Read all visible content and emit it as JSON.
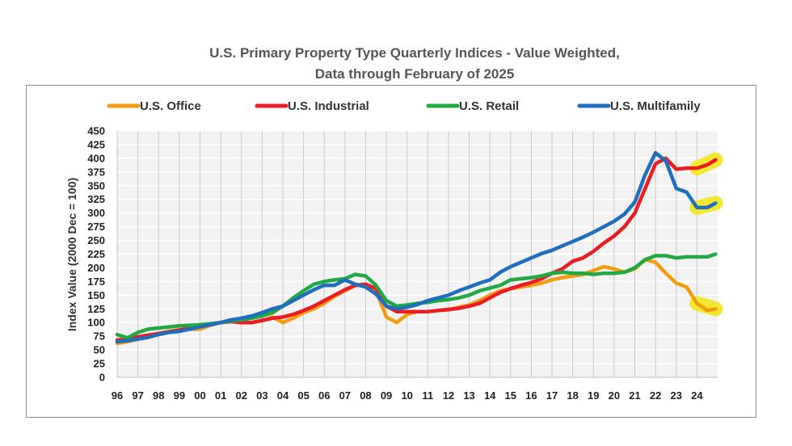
{
  "chart_data": {
    "type": "line",
    "title_line1": "U.S. Primary Property Type  Quarterly Indices - Value Weighted,",
    "title_line2": "Data through February of 2025",
    "ylabel": "Index Value (2000 Dec = 100)",
    "xlabel": "",
    "ylim": [
      0,
      450
    ],
    "ytick_step": 25,
    "grid": true,
    "legend_position": "top",
    "x_tick_labels": [
      "96",
      "97",
      "98",
      "99",
      "00",
      "01",
      "02",
      "03",
      "04",
      "05",
      "06",
      "07",
      "08",
      "09",
      "10",
      "11",
      "12",
      "13",
      "14",
      "15",
      "16",
      "17",
      "18",
      "19",
      "20",
      "21",
      "22",
      "23",
      "24"
    ],
    "x": [
      1996.0,
      1996.5,
      1997.0,
      1997.5,
      1998.0,
      1998.5,
      1999.0,
      1999.5,
      2000.0,
      2000.5,
      2001.0,
      2001.5,
      2002.0,
      2002.5,
      2003.0,
      2003.5,
      2004.0,
      2004.5,
      2005.0,
      2005.5,
      2006.0,
      2006.5,
      2007.0,
      2007.5,
      2008.0,
      2008.5,
      2009.0,
      2009.5,
      2010.0,
      2010.5,
      2011.0,
      2011.5,
      2012.0,
      2012.5,
      2013.0,
      2013.5,
      2014.0,
      2014.5,
      2015.0,
      2015.5,
      2016.0,
      2016.5,
      2017.0,
      2017.5,
      2018.0,
      2018.5,
      2019.0,
      2019.5,
      2020.0,
      2020.5,
      2021.0,
      2021.5,
      2022.0,
      2022.5,
      2023.0,
      2023.5,
      2024.0,
      2024.5,
      2024.9
    ],
    "series": [
      {
        "name": "U.S. Office",
        "color": "#f39c12",
        "values": [
          62,
          65,
          70,
          75,
          80,
          84,
          87,
          88,
          88,
          95,
          100,
          102,
          100,
          100,
          103,
          110,
          100,
          108,
          118,
          125,
          135,
          148,
          158,
          168,
          168,
          158,
          110,
          100,
          115,
          120,
          120,
          122,
          123,
          128,
          132,
          140,
          150,
          158,
          162,
          165,
          168,
          172,
          178,
          182,
          185,
          188,
          195,
          202,
          198,
          192,
          198,
          215,
          210,
          190,
          172,
          165,
          135,
          122,
          125
        ]
      },
      {
        "name": "U.S. Industrial",
        "color": "#ea1c24",
        "values": [
          68,
          70,
          74,
          77,
          80,
          83,
          86,
          90,
          94,
          97,
          100,
          102,
          100,
          100,
          104,
          108,
          110,
          115,
          122,
          130,
          140,
          150,
          160,
          168,
          170,
          162,
          130,
          120,
          120,
          120,
          120,
          122,
          124,
          126,
          130,
          135,
          145,
          155,
          162,
          168,
          173,
          180,
          190,
          198,
          212,
          218,
          230,
          245,
          258,
          275,
          300,
          345,
          390,
          400,
          380,
          382,
          382,
          388,
          397
        ]
      },
      {
        "name": "U.S. Retail",
        "color": "#21a944",
        "values": [
          78,
          72,
          82,
          88,
          90,
          92,
          94,
          95,
          96,
          98,
          100,
          103,
          105,
          108,
          112,
          118,
          130,
          145,
          158,
          170,
          175,
          178,
          180,
          188,
          185,
          168,
          140,
          130,
          132,
          135,
          137,
          140,
          142,
          145,
          150,
          158,
          163,
          168,
          178,
          180,
          182,
          185,
          190,
          192,
          190,
          190,
          188,
          190,
          190,
          192,
          200,
          215,
          222,
          222,
          218,
          220,
          220,
          220,
          225
        ]
      },
      {
        "name": "U.S. Multifamily",
        "color": "#1f6fbe",
        "values": [
          65,
          67,
          70,
          73,
          78,
          82,
          84,
          88,
          92,
          96,
          100,
          105,
          108,
          112,
          118,
          125,
          130,
          140,
          150,
          160,
          168,
          168,
          178,
          170,
          165,
          152,
          130,
          125,
          128,
          133,
          140,
          145,
          150,
          158,
          165,
          172,
          178,
          192,
          202,
          210,
          218,
          226,
          232,
          240,
          248,
          256,
          265,
          275,
          285,
          298,
          320,
          370,
          410,
          395,
          345,
          338,
          310,
          310,
          318
        ]
      }
    ],
    "end_highlights": [
      {
        "series": "U.S. Office",
        "color": "#f5e61a"
      },
      {
        "series": "U.S. Industrial",
        "color": "#f5e61a"
      },
      {
        "series": "U.S. Multifamily",
        "color": "#f5e61a"
      }
    ]
  }
}
